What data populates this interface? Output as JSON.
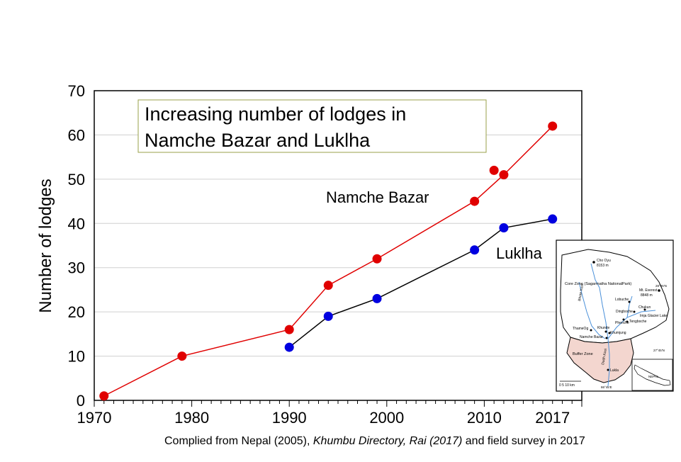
{
  "chart_data": {
    "type": "line",
    "title_lines": [
      "Increasing number of lodges in",
      "Namche Bazar and Luklha"
    ],
    "ylabel": "Number of lodges",
    "xlabel": "",
    "xlim": [
      1970,
      2020
    ],
    "ylim": [
      0,
      70
    ],
    "x_ticks": [
      1970,
      1980,
      1990,
      2000,
      2010,
      2017
    ],
    "y_ticks": [
      0,
      10,
      20,
      30,
      40,
      50,
      60,
      70
    ],
    "grid": true,
    "series": [
      {
        "name": "Namche Bazar",
        "color": "#e00000",
        "points": [
          {
            "x": 1971,
            "y": 1
          },
          {
            "x": 1979,
            "y": 10
          },
          {
            "x": 1990,
            "y": 16
          },
          {
            "x": 1994,
            "y": 26
          },
          {
            "x": 1999,
            "y": 32
          },
          {
            "x": 2009,
            "y": 45
          },
          {
            "x": 2012,
            "y": 51
          },
          {
            "x": 2017,
            "y": 62
          }
        ],
        "extra_points": [
          {
            "x": 2011,
            "y": 52
          }
        ]
      },
      {
        "name": "Luklha",
        "color": "#0000e0",
        "points": [
          {
            "x": 1990,
            "y": 12
          },
          {
            "x": 1994,
            "y": 19
          },
          {
            "x": 1999,
            "y": 23
          },
          {
            "x": 2009,
            "y": 34
          },
          {
            "x": 2012,
            "y": 39
          },
          {
            "x": 2017,
            "y": 41
          }
        ]
      }
    ]
  },
  "caption": {
    "part1": "Complied from Nepal (2005), ",
    "part2": "Khumbu Directory, Rai (2017)",
    "part3": " and field survey in 2017"
  },
  "inset_map": {
    "labels": {
      "cho_oyu": "Cho Oyu",
      "cho_oyu_elev": "8153 m",
      "core_zone": "Core Zone (Sagarmatha NationalPark)",
      "everest": "Mt. Everest",
      "everest_elev": "8848 m",
      "lat1": "28°05'N",
      "lobuche": "Lobuche",
      "dingboche": "Dingboche",
      "chukun": "Chukun",
      "imja": "Imja Glacier Lake",
      "pheriche": "Pheriche",
      "tengboche": "Tengboche",
      "bhote_kosi": "Bhote Kosi",
      "thame": "ThameOg",
      "khunde": "Khunde",
      "khumjung": "Khumjung",
      "namche": "Namche Bazar",
      "buffer": "Buffer Zone",
      "dudh_kosi": "Dudh Kosi",
      "lat2": "27°45'N",
      "lukla": "Lukla",
      "scale": "0   5   10 km",
      "long": "86°45'E",
      "nepal": "NEPAL"
    }
  }
}
